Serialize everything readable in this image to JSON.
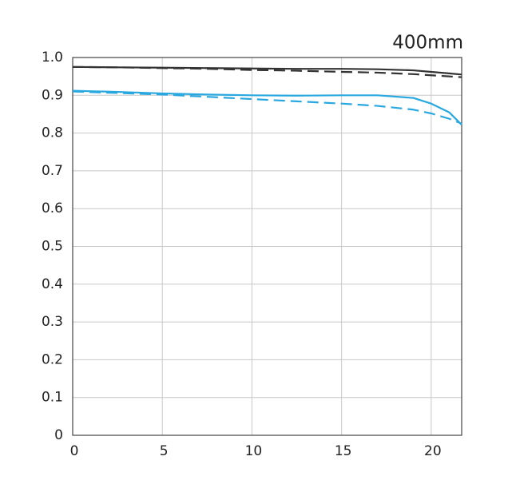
{
  "chart_data": {
    "type": "line",
    "title": "400mm",
    "x": [
      0,
      2.5,
      5,
      7.5,
      10,
      12.5,
      15,
      17,
      19,
      20,
      21,
      21.7
    ],
    "series": [
      {
        "color": "#333333",
        "dash": false,
        "values": [
          0.975,
          0.974,
          0.973,
          0.972,
          0.971,
          0.97,
          0.97,
          0.969,
          0.966,
          0.962,
          0.958,
          0.955
        ]
      },
      {
        "color": "#333333",
        "dash": true,
        "values": [
          0.975,
          0.974,
          0.972,
          0.97,
          0.967,
          0.965,
          0.962,
          0.96,
          0.956,
          0.953,
          0.95,
          0.948
        ]
      },
      {
        "color": "#29a8e0",
        "dash": false,
        "values": [
          0.912,
          0.909,
          0.905,
          0.902,
          0.9,
          0.899,
          0.9,
          0.9,
          0.893,
          0.878,
          0.855,
          0.822
        ]
      },
      {
        "color": "#29a8e0",
        "dash": true,
        "values": [
          0.91,
          0.906,
          0.902,
          0.896,
          0.89,
          0.884,
          0.878,
          0.872,
          0.862,
          0.852,
          0.838,
          0.825
        ]
      }
    ],
    "xlim": [
      0,
      21.7
    ],
    "xticks": [
      0,
      5,
      10,
      15,
      20
    ],
    "ylim": [
      0,
      1
    ],
    "yticks": [
      0,
      0.1,
      0.2,
      0.3,
      0.4,
      0.5,
      0.6,
      0.7,
      0.8,
      0.9,
      {
        "value": 1,
        "label": "1.0"
      }
    ],
    "grid": true
  }
}
